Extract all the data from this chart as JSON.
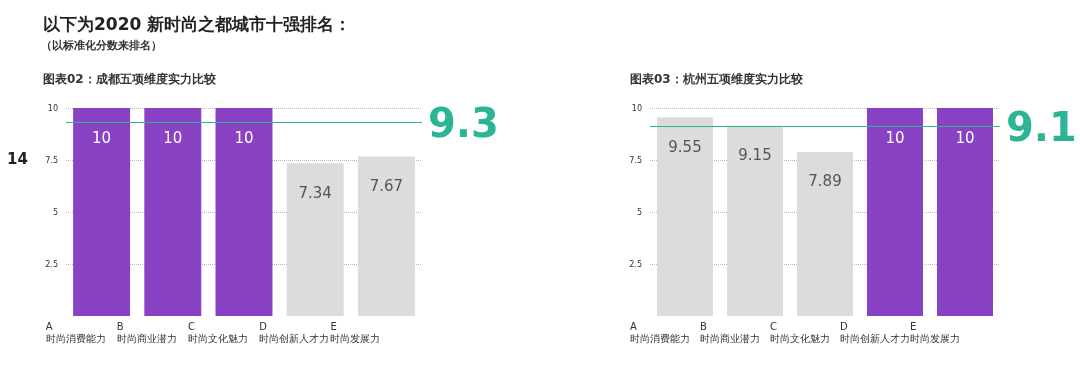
{
  "chart_data": [
    {
      "type": "bar",
      "title": "图表02：成都五项维度实力比较",
      "annotations": [
        "以下为2020 新时尚之都城市十强排名：",
        "（以标准化分数来排名）",
        "14"
      ],
      "categories": [
        "A\n时尚消费能力",
        "B\n时尚商业潜力",
        "C\n时尚文化魅力",
        "D\n时尚创新人才力",
        "E\n时尚发展力"
      ],
      "values": [
        10,
        10,
        10,
        7.34,
        7.67
      ],
      "colors": [
        "#8a42c4",
        "#8a42c4",
        "#8a42c4",
        "#dcdcdc",
        "#dcdcdc"
      ],
      "ylim": [
        0,
        10
      ],
      "yticks": [
        2.5,
        5,
        7.5,
        10
      ],
      "grid": "y",
      "data_labels": true,
      "ref_lines": [
        {
          "axis": "y",
          "value": 9.3,
          "label": "9.3",
          "color": "#2bb596"
        }
      ]
    },
    {
      "type": "bar",
      "title": "图表03：杭州五项维度实力比较",
      "categories": [
        "A\n时尚消费能力",
        "B\n时尚商业潜力",
        "C\n时尚文化魅力",
        "D\n时尚创新人才力",
        "E\n时尚发展力"
      ],
      "values": [
        9.55,
        9.15,
        7.89,
        10,
        10
      ],
      "colors": [
        "#dcdcdc",
        "#dcdcdc",
        "#dcdcdc",
        "#8a42c4",
        "#8a42c4"
      ],
      "ylim": [
        0,
        10
      ],
      "yticks": [
        2.5,
        5,
        7.5,
        10
      ],
      "grid": "y",
      "data_labels": true,
      "ref_lines": [
        {
          "axis": "y",
          "value": 9.1,
          "label": "9.1",
          "color": "#2bb596"
        }
      ]
    }
  ]
}
